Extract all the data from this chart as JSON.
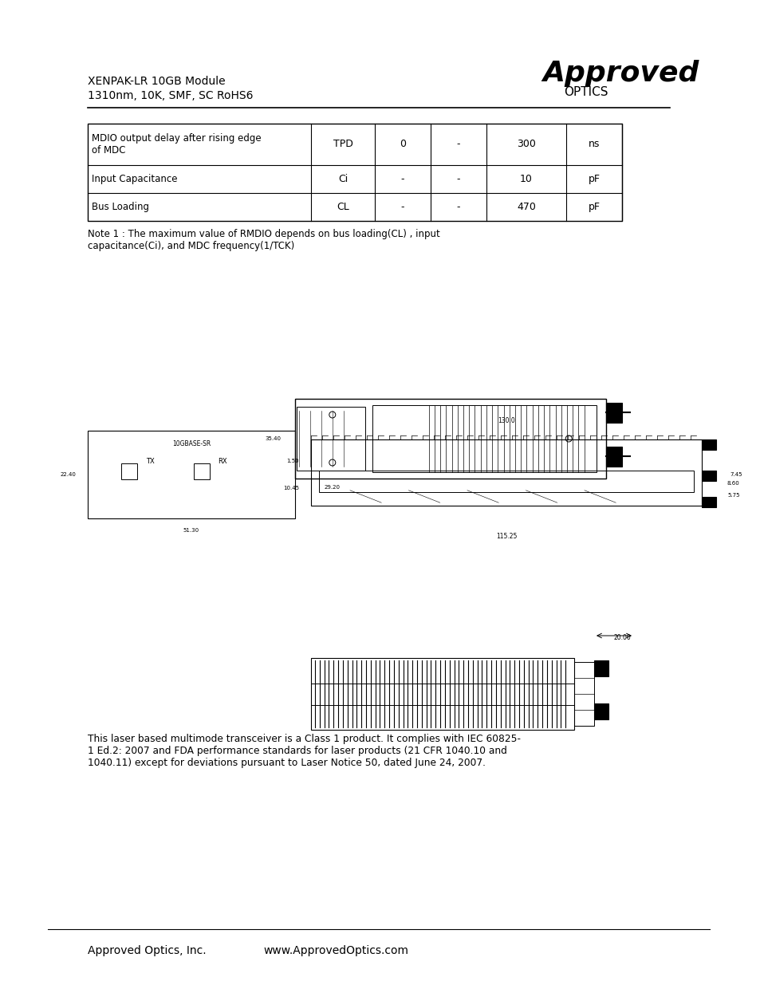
{
  "bg_color": "#ffffff",
  "header_line1": "XENPAK-LR 10GB Module",
  "header_line2": "1310nm, 10K, SMF, SC RoHS6",
  "approved_text": "Approved",
  "optics_text": "OPTICS",
  "table_rows": [
    [
      "MDIO output delay after rising edge\nof MDC",
      "TPD",
      "0",
      "-",
      "300",
      "ns"
    ],
    [
      "Input Capacitance",
      "Ci",
      "-",
      "-",
      "10",
      "pF"
    ],
    [
      "Bus Loading",
      "CL",
      "-",
      "-",
      "470",
      "pF"
    ]
  ],
  "note_text": "Note 1 : The maximum value of RMDIO depends on bus loading(CL) , input\ncapacitance(Ci), and MDC frequency(1/TCK)",
  "safety_text": "This laser based multimode transceiver is a Class 1 product. It complies with IEC 60825-\n1 Ed.2: 2007 and FDA performance standards for laser products (21 CFR 1040.10 and\n1040.11) except for deviations pursuant to Laser Notice 50, dated June 24, 2007.",
  "footer_left": "Approved Optics, Inc.",
  "footer_right": "www.ApprovedOptics.com",
  "text_color": "#000000",
  "line_color": "#000000",
  "table_font_size": 9,
  "body_font_size": 9
}
